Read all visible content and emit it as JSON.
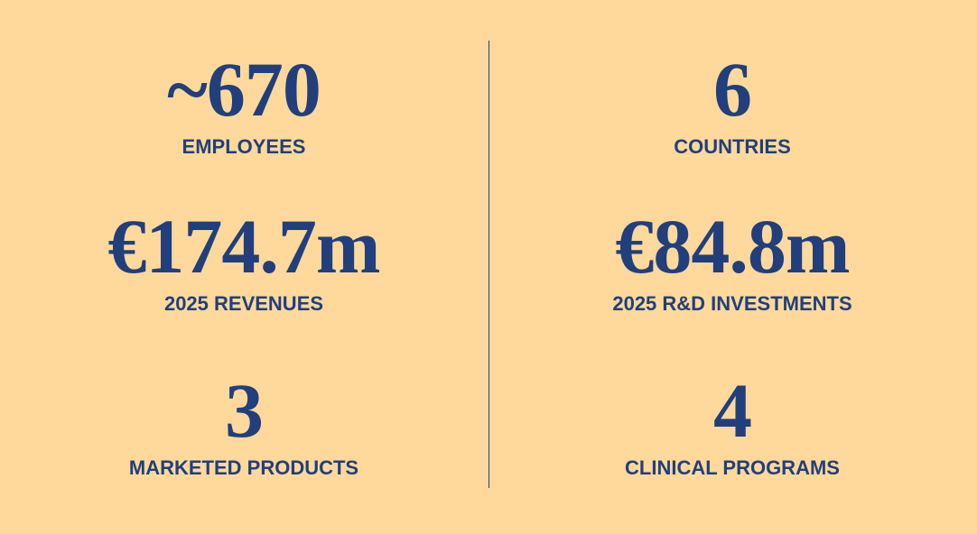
{
  "stats": [
    {
      "value": "~670",
      "label": "EMPLOYEES"
    },
    {
      "value": "6",
      "label": "COUNTRIES"
    },
    {
      "value": "€174.7m",
      "label": "2025 REVENUES"
    },
    {
      "value": "€84.8m",
      "label": "2025 R&D INVESTMENTS"
    },
    {
      "value": "3",
      "label": "MARKETED PRODUCTS"
    },
    {
      "value": "4",
      "label": "CLINICAL PROGRAMS"
    }
  ]
}
